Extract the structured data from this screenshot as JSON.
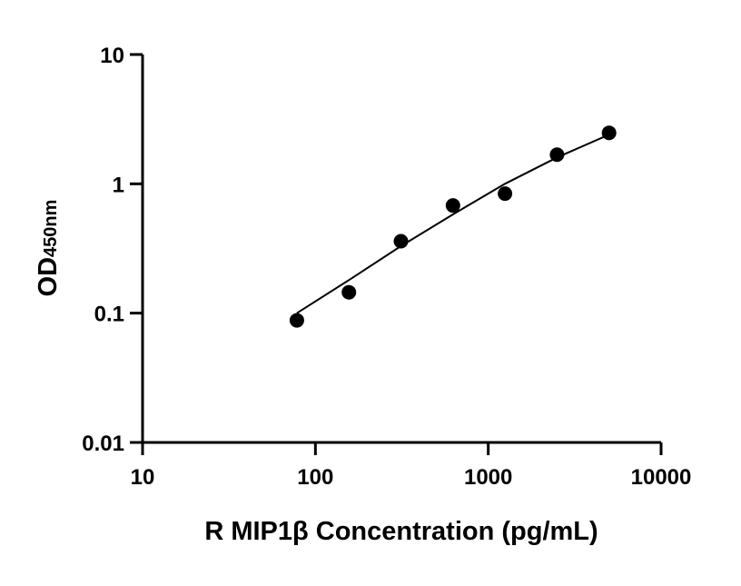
{
  "chart_data": {
    "type": "scatter",
    "title": "",
    "xlabel": "R MIP1β Concentration (pg/mL)",
    "ylabel": "OD",
    "ylabel_subscript": "450nm",
    "x_scale": "log",
    "y_scale": "log",
    "xlim": [
      10,
      10000
    ],
    "ylim": [
      0.01,
      10
    ],
    "x_ticks": [
      "10",
      "100",
      "1000",
      "10000"
    ],
    "y_ticks": [
      "0.01",
      "0.1",
      "1",
      "10"
    ],
    "grid": false,
    "legend": "none",
    "points": [
      {
        "x": 78.125,
        "y": 0.088
      },
      {
        "x": 156.25,
        "y": 0.145
      },
      {
        "x": 312.5,
        "y": 0.36
      },
      {
        "x": 625,
        "y": 0.68
      },
      {
        "x": 1250,
        "y": 0.84
      },
      {
        "x": 2500,
        "y": 1.68
      },
      {
        "x": 5000,
        "y": 2.48
      }
    ],
    "fit_curve": [
      {
        "x": 78.125,
        "y": 0.1
      },
      {
        "x": 156.25,
        "y": 0.18
      },
      {
        "x": 312.5,
        "y": 0.33
      },
      {
        "x": 625,
        "y": 0.58
      },
      {
        "x": 1250,
        "y": 1.0
      },
      {
        "x": 2500,
        "y": 1.6
      },
      {
        "x": 5000,
        "y": 2.4
      }
    ],
    "colors": {
      "points": "#000000",
      "line": "#000000",
      "axes": "#000000"
    }
  }
}
